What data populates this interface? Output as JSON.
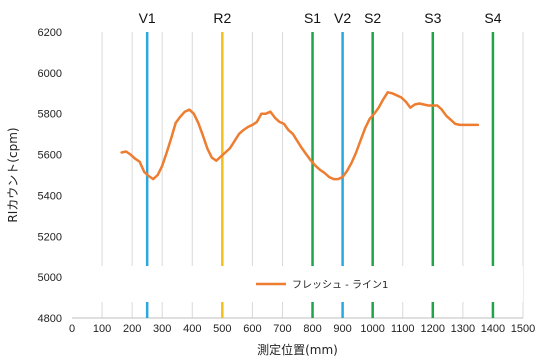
{
  "chart_data": {
    "type": "line",
    "title": "",
    "xlabel": "測定位置(mm)",
    "ylabel": "RIカウント(cpm)",
    "xlim": [
      0,
      1500
    ],
    "ylim": [
      4800,
      6200
    ],
    "x_ticks": [
      0,
      100,
      200,
      300,
      400,
      500,
      600,
      700,
      800,
      900,
      1000,
      1100,
      1200,
      1300,
      1400,
      1500
    ],
    "y_ticks": [
      4800,
      5000,
      5200,
      5400,
      5600,
      5800,
      6000,
      6200
    ],
    "x_tick_labels": [
      "0",
      "100",
      "200",
      "300",
      "400",
      "500",
      "600",
      "700",
      "800",
      "900",
      "1000",
      "1100",
      "1200",
      "1300",
      "1400",
      "1500"
    ],
    "y_tick_labels": [
      "4800",
      "5000",
      "5200",
      "5400",
      "5600",
      "5800",
      "6000",
      "6200"
    ],
    "grid": {
      "vertical": true,
      "horizontal": false
    },
    "legend": {
      "position": "bottom-inside"
    },
    "vertical_markers": [
      {
        "label": "V1",
        "x": 250,
        "color": "#29a8df"
      },
      {
        "label": "R2",
        "x": 500,
        "color": "#f2c01e"
      },
      {
        "label": "S1",
        "x": 800,
        "color": "#21a34a"
      },
      {
        "label": "V2",
        "x": 900,
        "color": "#29a8df"
      },
      {
        "label": "S2",
        "x": 1000,
        "color": "#21a34a"
      },
      {
        "label": "S3",
        "x": 1200,
        "color": "#21a34a"
      },
      {
        "label": "S4",
        "x": 1400,
        "color": "#21a34a"
      }
    ],
    "series": [
      {
        "name": "フレッシュ - ライン1",
        "color": "#ed7d31",
        "x": [
          165,
          180,
          195,
          210,
          225,
          240,
          255,
          270,
          285,
          300,
          315,
          330,
          345,
          360,
          375,
          390,
          405,
          420,
          435,
          450,
          465,
          480,
          495,
          510,
          525,
          540,
          555,
          570,
          585,
          600,
          615,
          630,
          645,
          660,
          675,
          690,
          705,
          720,
          735,
          750,
          765,
          780,
          795,
          810,
          825,
          840,
          855,
          870,
          885,
          900,
          915,
          930,
          945,
          960,
          975,
          990,
          1005,
          1020,
          1035,
          1050,
          1065,
          1080,
          1095,
          1110,
          1125,
          1140,
          1155,
          1170,
          1185,
          1200,
          1215,
          1230,
          1245,
          1260,
          1275,
          1290,
          1305,
          1320,
          1335,
          1350
        ],
        "values": [
          5610,
          5615,
          5600,
          5580,
          5565,
          5515,
          5495,
          5480,
          5500,
          5545,
          5610,
          5680,
          5755,
          5785,
          5810,
          5820,
          5800,
          5755,
          5695,
          5630,
          5585,
          5570,
          5590,
          5610,
          5630,
          5665,
          5700,
          5720,
          5735,
          5745,
          5760,
          5800,
          5800,
          5810,
          5780,
          5760,
          5750,
          5720,
          5700,
          5665,
          5630,
          5600,
          5570,
          5545,
          5525,
          5510,
          5490,
          5480,
          5480,
          5490,
          5520,
          5560,
          5610,
          5670,
          5730,
          5775,
          5800,
          5830,
          5870,
          5905,
          5900,
          5890,
          5880,
          5860,
          5830,
          5845,
          5850,
          5845,
          5840,
          5840,
          5840,
          5820,
          5790,
          5770,
          5750,
          5745,
          5745,
          5745,
          5745,
          5745
        ]
      }
    ]
  }
}
